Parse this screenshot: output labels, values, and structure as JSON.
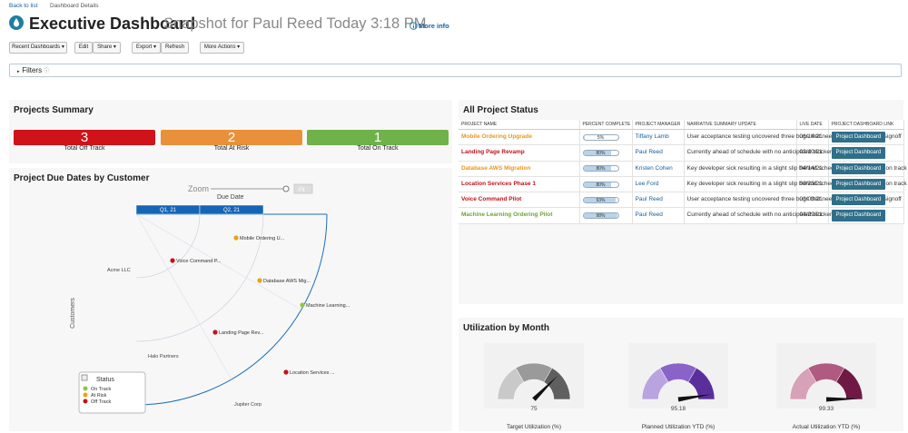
{
  "header": {
    "back_link": "Back to list",
    "breadcrumb": "Dashboard Details",
    "title": "Executive Dashboard",
    "subtitle": "Snapshot for Paul Reed Today 3:18 PM",
    "more_info": "More info"
  },
  "toolbar": [
    "Recent Dashboards",
    "Edit",
    "Share",
    "Export",
    "Refresh",
    "More Actions"
  ],
  "filters": "Filters",
  "summary": {
    "title": "Projects Summary",
    "tiles": [
      {
        "value": 3,
        "label": "Total Off Track",
        "color": "#d0121b"
      },
      {
        "value": 2,
        "label": "Total At Risk",
        "color": "#e8913a"
      },
      {
        "value": 1,
        "label": "Total On Track",
        "color": "#6fb24a"
      }
    ]
  },
  "due_dates": {
    "title": "Project Due Dates by Customer",
    "zoom": "Zoom",
    "fit": "Fit",
    "axis_label": "Due Date",
    "quarters": [
      "Q1, 21",
      "Q2, 21"
    ],
    "y_axis_label": "Customers",
    "customers": [
      "Acme LLC",
      "Halo Partners",
      "Jupiter Corp"
    ],
    "points": [
      {
        "label": "Mobile Ordering U...",
        "color": "#e8a317"
      },
      {
        "label": "Voice Command P...",
        "color": "#c0141b"
      },
      {
        "label": "Database AWS Mig...",
        "color": "#e8a317"
      },
      {
        "label": "Machine Learning...",
        "color": "#8dc63f"
      },
      {
        "label": "Landing Page Rev...",
        "color": "#c0141b"
      },
      {
        "label": "Location Services ...",
        "color": "#c0141b"
      }
    ],
    "legend": {
      "title": "Status",
      "items": [
        {
          "label": "On Track",
          "color": "#8dc63f"
        },
        {
          "label": "At Risk",
          "color": "#e8a317"
        },
        {
          "label": "Off Track",
          "color": "#c0141b"
        }
      ]
    }
  },
  "project_status": {
    "title": "All Project Status",
    "columns": [
      "PROJECT NAME",
      "PERCENT COMPLETE",
      "PROJECT MANAGER",
      "NARRATIVE SUMMARY UPDATE",
      "LIVE DATE",
      "PROJECT DASHBOARD LINK"
    ],
    "rows": [
      {
        "name": "Mobile Ordering Upgrade",
        "color": "#e8961e",
        "percent": {
          "value": 5,
          "label": "5%"
        },
        "manager": "Tiffany Lamb",
        "summary": "User acceptance testing uncovered three bugs that need to be fixed before signoff",
        "date": "06/14/21",
        "link": "Project Dashboard"
      },
      {
        "name": "Landing Page Revamp",
        "color": "#c0141b",
        "percent": {
          "value": 80,
          "label": "80%"
        },
        "manager": "Paul Reed",
        "summary": "Currently ahead of schedule with no anticipated blockers",
        "date": "02/10/21",
        "link": "Project Dashboard"
      },
      {
        "name": "Database AWS Migration",
        "color": "#e8961e",
        "percent": {
          "value": 80,
          "label": "80%"
        },
        "manager": "Kristen Cohen",
        "summary": "Key developer sick resulting in a slight slip behind schedule. Aim to be back on track by end of month.",
        "date": "04/14/21",
        "link": "Project Dashboard"
      },
      {
        "name": "Location Services Phase 1",
        "color": "#c0141b",
        "percent": {
          "value": 80,
          "label": "80%"
        },
        "manager": "Lee Ford",
        "summary": "Key developer sick resulting in a slight slip behind schedule. Aim to be back on track by end of month.",
        "date": "03/23/21",
        "link": "Project Dashboard"
      },
      {
        "name": "Voice Command Pilot",
        "color": "#c0141b",
        "percent": {
          "value": 93,
          "label": "93%"
        },
        "manager": "Paul Reed",
        "summary": "User acceptance testing uncovered three bugs that need to be fixed before signoff",
        "date": "03/03/21",
        "link": "Project Dashboard"
      },
      {
        "name": "Machine Learning Ordering Pilot",
        "color": "#6fa33a",
        "percent": {
          "value": 98,
          "label": "98%"
        },
        "manager": "Paul Reed",
        "summary": "Currently ahead of schedule with no anticipated blockers",
        "date": "04/29/21",
        "link": "Project Dashboard"
      }
    ]
  },
  "utilization": {
    "title": "Utilization by Month",
    "gauges": [
      {
        "title": "Target Utilization (%)",
        "value": 75,
        "range": [
          0,
          100
        ],
        "colors": [
          "#c9c9c9",
          "#9a9a9a",
          "#5f5f5f"
        ]
      },
      {
        "title": "Planned Utilization YTD (%)",
        "value": 95.18,
        "range": [
          0,
          100
        ],
        "colors": [
          "#b9a4e0",
          "#8a63c9",
          "#5a2f9c"
        ]
      },
      {
        "title": "Actual Utilization YTD (%)",
        "value": 99.33,
        "range": [
          0,
          100
        ],
        "colors": [
          "#d7a1b7",
          "#b05a82",
          "#6e1a44"
        ]
      }
    ]
  }
}
